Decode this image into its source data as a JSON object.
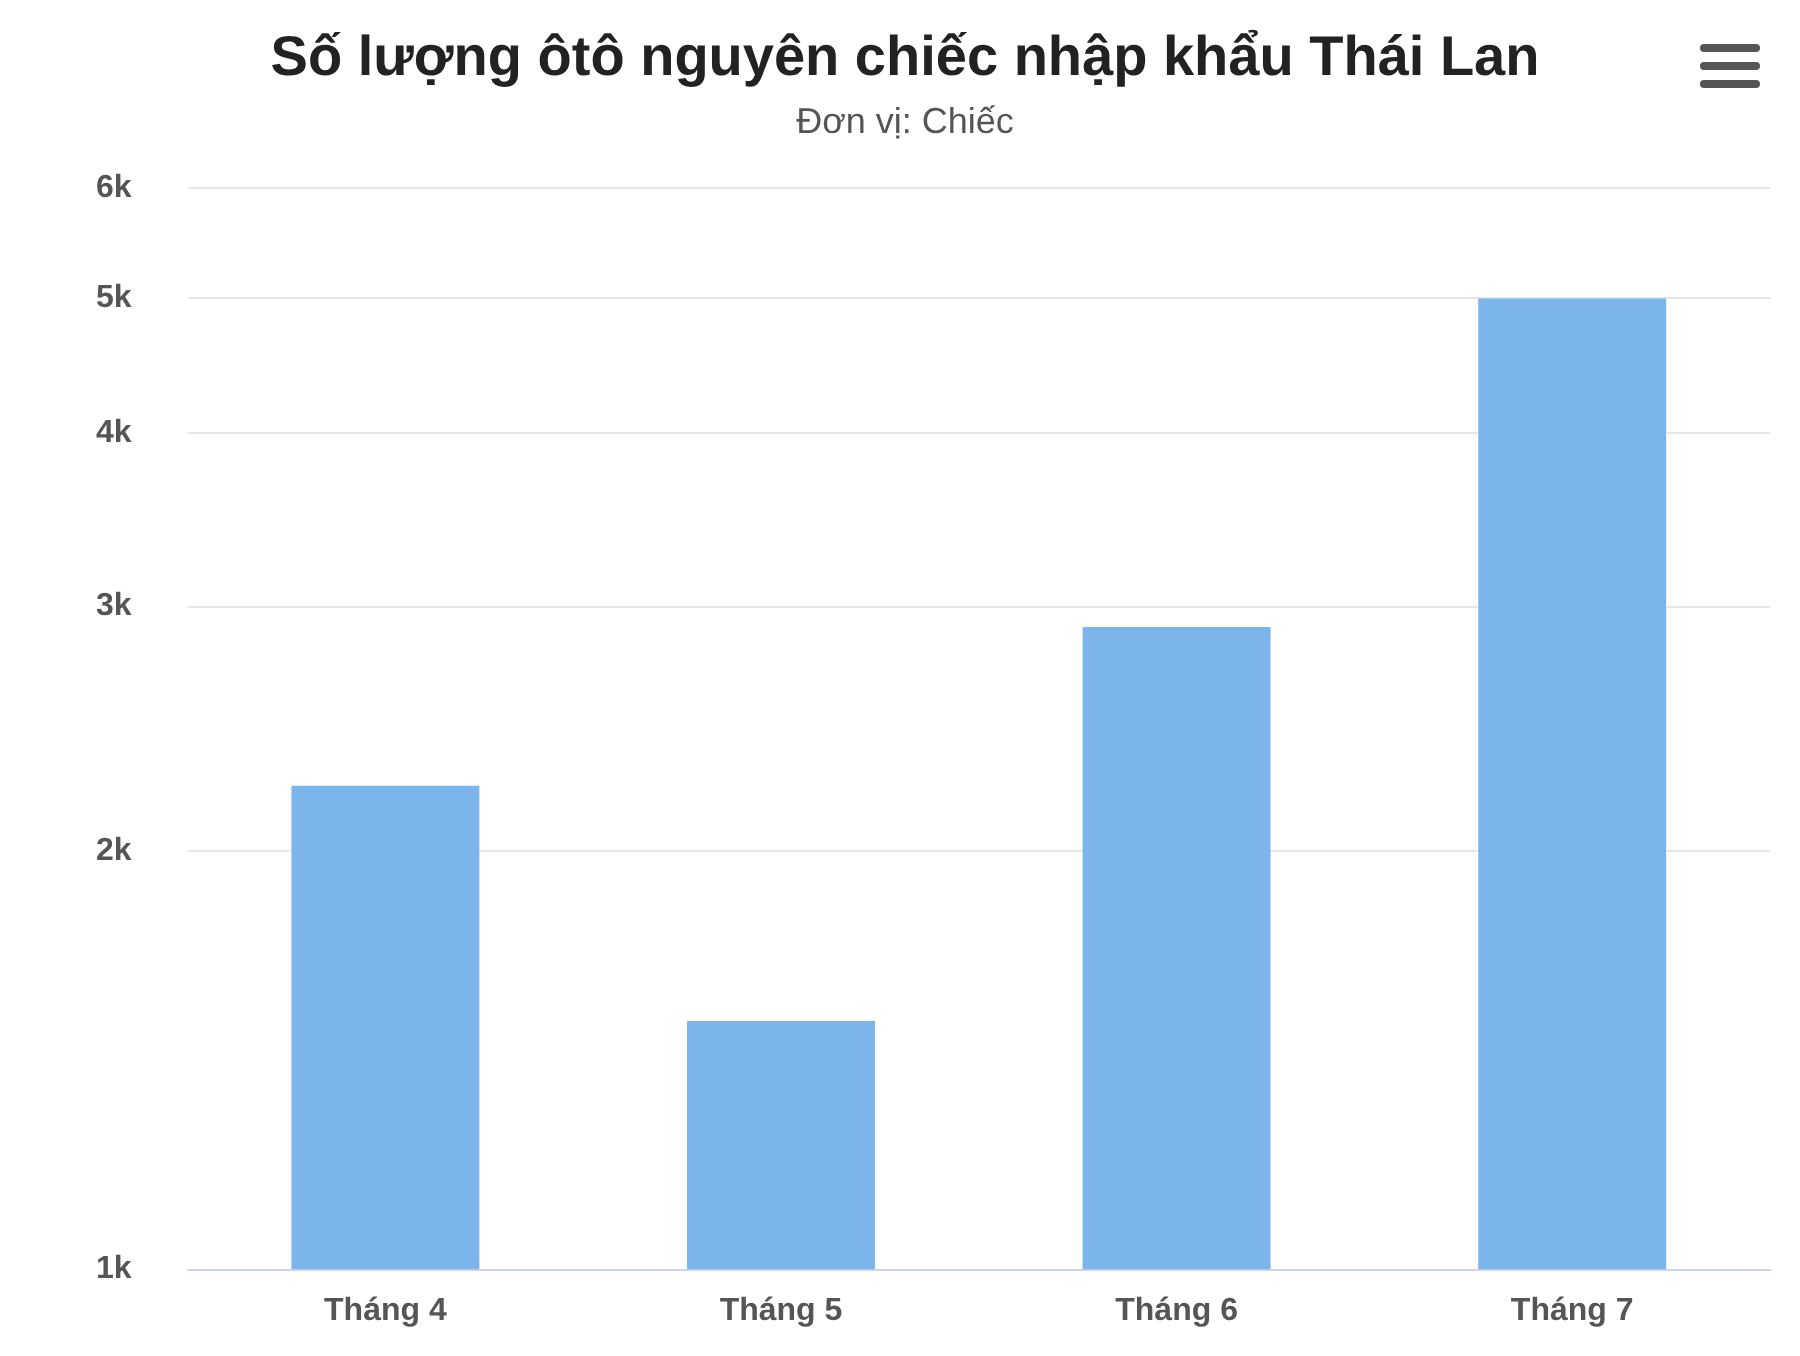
{
  "chart_data": {
    "type": "bar",
    "title": "Số lượng ôtô nguyên chiếc nhập khẩu Thái Lan",
    "subtitle": "Đơn vị: Chiếc",
    "categories": [
      "Tháng 4",
      "Tháng 5",
      "Tháng 6",
      "Tháng 7"
    ],
    "values": [
      2230,
      1510,
      2900,
      5000
    ],
    "color": "#7cb5ec",
    "log": "y",
    "ylim": [
      1000,
      6000
    ],
    "yticks": [
      {
        "value": 1000,
        "label": "1k"
      },
      {
        "value": 2000,
        "label": "2k"
      },
      {
        "value": 3000,
        "label": "3k"
      },
      {
        "value": 4000,
        "label": "4k"
      },
      {
        "value": 5000,
        "label": "5k"
      },
      {
        "value": 6000,
        "label": "6k"
      }
    ],
    "grid": "y"
  }
}
